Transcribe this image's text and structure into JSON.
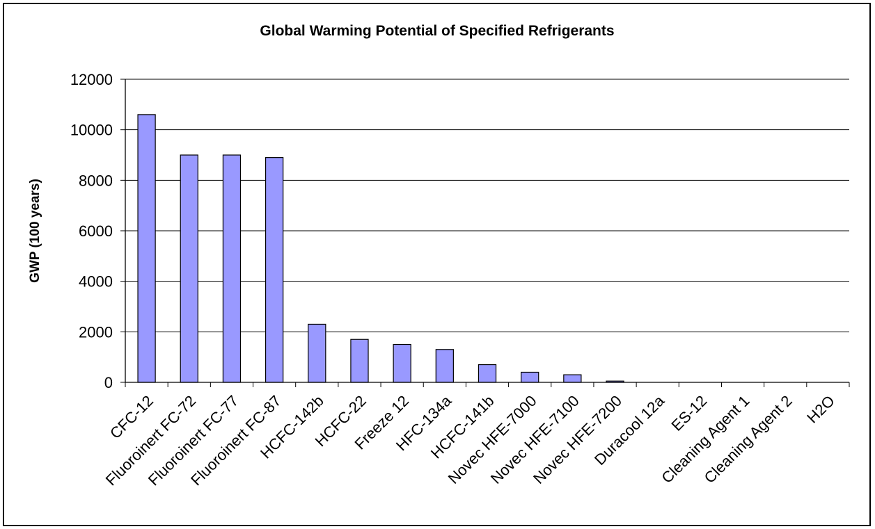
{
  "chart_data": {
    "type": "bar",
    "title": "Global Warming Potential of Specified Refrigerants",
    "ylabel": "GWP (100 years)",
    "xlabel": "",
    "categories": [
      "CFC-12",
      "Fluoroinert FC-72",
      "Fluoroinert FC-77",
      "Fluoroinert FC-87",
      "HCFC-142b",
      "HCFC-22",
      "Freeze 12",
      "HFC-134a",
      "HCFC-141b",
      "Novec HFE-7000",
      "Novec HFE-7100",
      "Novec HFE-7200",
      "Duracool 12a",
      "ES-12",
      "Cleaning Agent 1",
      "Cleaning Agent 2",
      "H2O"
    ],
    "values": [
      10600,
      9000,
      9000,
      8900,
      2300,
      1700,
      1500,
      1300,
      700,
      400,
      300,
      50,
      0,
      0,
      0,
      0,
      0
    ],
    "ylim": [
      0,
      12000
    ],
    "yticks": [
      0,
      2000,
      4000,
      6000,
      8000,
      10000,
      12000
    ],
    "grid": true,
    "legend": "none",
    "bar_color": "#9999ff",
    "bar_edge_color": "#000000",
    "grid_color": "#000000"
  }
}
